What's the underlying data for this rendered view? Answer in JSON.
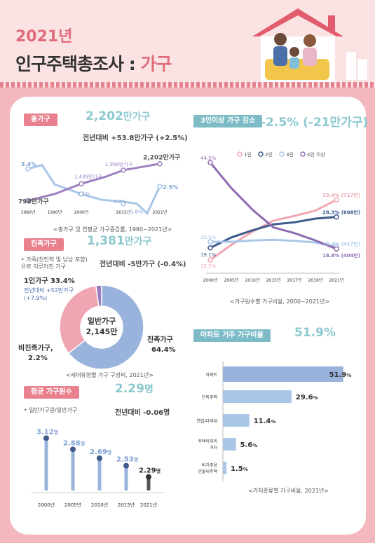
{
  "header": {
    "year": "2021년",
    "title_main": "인구주택총조사",
    "title_sep": " : ",
    "title_hl": "가구"
  },
  "colors": {
    "pink": "#e8808d",
    "teal": "#8cc9cf",
    "blue": "#9ab3dc",
    "purple": "#8e6cb0",
    "navy": "#3e5a8c"
  },
  "total_households": {
    "tag": "총가구",
    "big_num": "2,202",
    "big_unit": "만가구",
    "delta": "전년대비 +53.8만가구 (+2.5%)",
    "caption": "<총가구 및 연평균 가구증감률, 1980~2021년>",
    "labels": {
      "l1980": "798만가구",
      "l2000": "1,439만가구",
      "l2015": "1,956만가구",
      "l2021": "2,202만가구",
      "r1980": "3.4%",
      "r2000": "2.1%",
      "r2015a": "1.7%",
      "r2015b": "1.6%",
      "r2021": "2.5%"
    }
  },
  "family_households": {
    "tag": "친족가구",
    "big_num": "1,381",
    "big_unit": "만가구",
    "note": "• 가족(친인척 및 남남 포함)으로 이루어진 가구",
    "delta": "전년대비 -5만가구 (-0.4%)",
    "one_person": "1인가구 33.4%",
    "one_person_delta": "전년대비 +52만가구",
    "one_person_pct": "(+7.9%)",
    "center1": "일반가구",
    "center2": "2,145만",
    "family": "친족가구",
    "family_pct": "64.4%",
    "nonfamily": "비친족가구,",
    "nonfamily_pct": "2.2%",
    "caption": "<세대유형별 가구 구성비, 2021년>"
  },
  "avg_size": {
    "tag": "평균 가구원수",
    "big_num": "2.29",
    "big_unit": "명",
    "note": "• 일반가구원/일반가구",
    "delta": "전년대비 -0.06명"
  },
  "three_plus": {
    "tag": "3인이상 가구 감소",
    "big": "-2.5% (-21만가구)",
    "caption": "<가구원수별 가구비율, 2000~2021년>"
  },
  "apartment": {
    "tag": "아파트 거주 가구비율",
    "big": "51.9%",
    "caption": "<거처종류별 가구비율, 2021년>"
  },
  "chart_data": [
    {
      "type": "line",
      "title": "총가구 및 연평균 가구증감률, 1980~2021년",
      "x": [
        "1980년",
        "1990년",
        "2000년",
        "2015년",
        "2021년"
      ],
      "series": [
        {
          "values": [
            798,
            null,
            1439,
            1956,
            2202
          ]
        },
        {
          "values": [
            3.4,
            null,
            2.1,
            1.6,
            2.5
          ]
        }
      ]
    },
    {
      "type": "pie",
      "title": "세대유형별 가구 구성비, 2021년",
      "labels": [
        "친족가구",
        "1인가구",
        "비친족가구"
      ],
      "values": [
        64.4,
        33.4,
        2.2
      ]
    },
    {
      "type": "bar",
      "categories": [
        "2000년",
        "2005년",
        "2010년",
        "2015년",
        "2021년"
      ],
      "values": [
        3.12,
        2.88,
        2.69,
        2.53,
        2.29
      ],
      "value_labels": [
        "3.12",
        "2.88",
        "2.69",
        "2.53",
        "2.29"
      ],
      "unit": "명"
    },
    {
      "type": "line",
      "title": "가구원수별 가구비율, 2000~2021년",
      "x": [
        "2000년",
        "2005년",
        "2010년",
        "2015년",
        "2017년",
        "2019년",
        "2021년"
      ],
      "series": [
        {
          "name": "1인",
          "values": [
            15.5,
            20.0,
            23.9,
            27.2,
            28.6,
            30.2,
            33.4
          ]
        },
        {
          "name": "2인",
          "values": [
            19.1,
            22.2,
            24.3,
            26.1,
            26.7,
            27.8,
            28.3
          ]
        },
        {
          "name": "3인",
          "values": [
            20.9,
            20.9,
            21.3,
            21.5,
            21.2,
            20.7,
            19.4
          ]
        },
        {
          "name": "4인 이상",
          "values": [
            44.5,
            36.9,
            30.5,
            25.2,
            23.5,
            21.3,
            18.8
          ]
        }
      ],
      "end_labels": [
        "33.4% (717만)",
        "28.3% (608만)",
        "19.4% (417만)",
        "18.8% (404만)"
      ],
      "start_labels": [
        "15.5%",
        "19.1%",
        "20.9%",
        "44.5%"
      ]
    },
    {
      "type": "bar",
      "orientation": "horizontal",
      "title": "거처종류별 가구비율, 2021년",
      "categories": [
        "아파트",
        "단독주택",
        "연립/다세대",
        "주택이외의 거처",
        "비거주용 건물내주택"
      ],
      "values": [
        51.9,
        29.6,
        11.4,
        5.6,
        1.5
      ],
      "unit": "%"
    }
  ]
}
